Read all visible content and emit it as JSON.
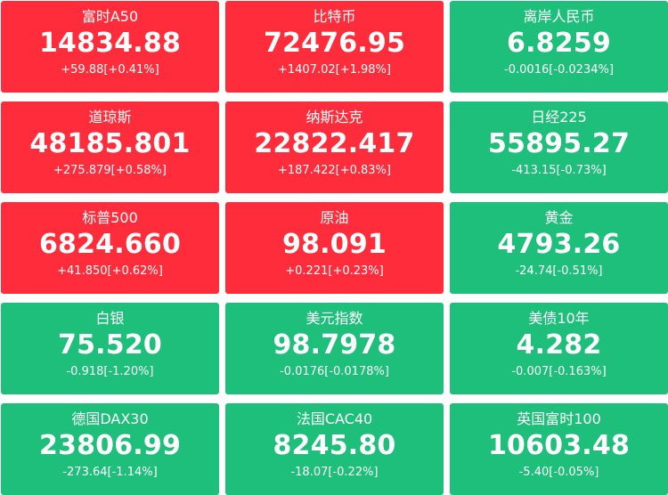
{
  "colors": {
    "up": "#ff2d3c",
    "down": "#1dbf7a",
    "text": "#ffffff"
  },
  "tiles": [
    {
      "name": "富时A50",
      "price": "14834.88",
      "change": "+59.88[+0.41%]",
      "trend": "up"
    },
    {
      "name": "比特币",
      "price": "72476.95",
      "change": "+1407.02[+1.98%]",
      "trend": "up"
    },
    {
      "name": "离岸人民币",
      "price": "6.8259",
      "change": "-0.0016[-0.0234%]",
      "trend": "down"
    },
    {
      "name": "道琼斯",
      "price": "48185.801",
      "change": "+275.879[+0.58%]",
      "trend": "up"
    },
    {
      "name": "纳斯达克",
      "price": "22822.417",
      "change": "+187.422[+0.83%]",
      "trend": "up"
    },
    {
      "name": "日经225",
      "price": "55895.27",
      "change": "-413.15[-0.73%]",
      "trend": "down"
    },
    {
      "name": "标普500",
      "price": "6824.660",
      "change": "+41.850[+0.62%]",
      "trend": "up"
    },
    {
      "name": "原油",
      "price": "98.091",
      "change": "+0.221[+0.23%]",
      "trend": "up"
    },
    {
      "name": "黄金",
      "price": "4793.26",
      "change": "-24.74[-0.51%]",
      "trend": "down"
    },
    {
      "name": "白银",
      "price": "75.520",
      "change": "-0.918[-1.20%]",
      "trend": "down"
    },
    {
      "name": "美元指数",
      "price": "98.7978",
      "change": "-0.0176[-0.0178%]",
      "trend": "down"
    },
    {
      "name": "美债10年",
      "price": "4.282",
      "change": "-0.007[-0.163%]",
      "trend": "down"
    },
    {
      "name": "德国DAX30",
      "price": "23806.99",
      "change": "-273.64[-1.14%]",
      "trend": "down"
    },
    {
      "name": "法国CAC40",
      "price": "8245.80",
      "change": "-18.07[-0.22%]",
      "trend": "down"
    },
    {
      "name": "英国富时100",
      "price": "10603.48",
      "change": "-5.40[-0.05%]",
      "trend": "down"
    }
  ]
}
